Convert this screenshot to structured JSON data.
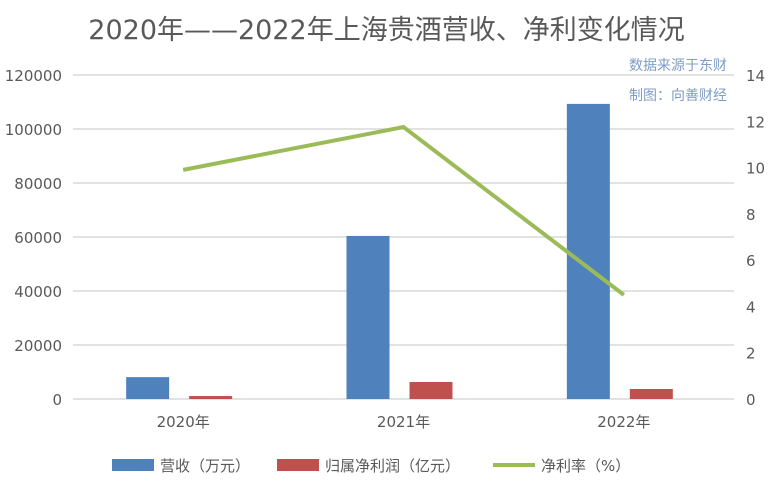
{
  "chart_data": {
    "type": "bar",
    "title": "2020年——2022年上海贵酒营收、净利变化情况",
    "annotations": [
      "数据来源于东财",
      "制图：向善财经"
    ],
    "categories": [
      "2020年",
      "2021年",
      "2022年"
    ],
    "series": [
      {
        "name": "营收（万元）",
        "type": "bar",
        "axis": "left",
        "color": "#4f81bd",
        "values": [
          8100,
          60400,
          109300
        ]
      },
      {
        "name": "归属净利润（亿元）",
        "type": "bar",
        "axis": "left",
        "color": "#c0504d",
        "values": [
          1100,
          6300,
          3700
        ]
      },
      {
        "name": "净利率（%）",
        "type": "line",
        "axis": "right",
        "color": "#9bbb59",
        "values": [
          9.9,
          11.75,
          4.5
        ]
      }
    ],
    "left_axis": {
      "ylim": [
        0,
        120000
      ],
      "ticks": [
        "0",
        "20000",
        "40000",
        "60000",
        "80000",
        "100000",
        "120000"
      ]
    },
    "right_axis": {
      "ylim": [
        0,
        14
      ],
      "ticks": [
        "0",
        "2",
        "4",
        "6",
        "8",
        "10",
        "12",
        "14"
      ]
    },
    "grid": true,
    "legend": "bottom"
  }
}
